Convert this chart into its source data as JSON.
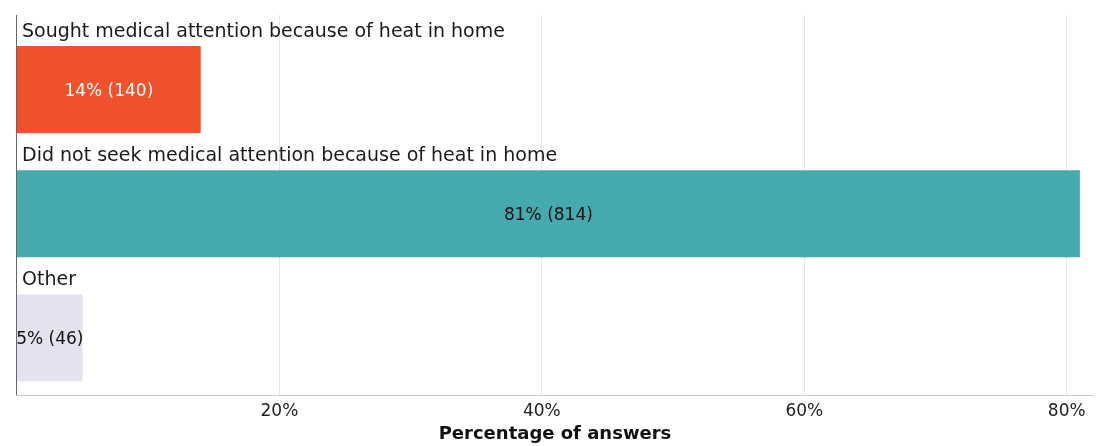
{
  "chart_data": {
    "type": "bar",
    "orientation": "horizontal",
    "categories": [
      "Sought medical attention because of heat in home",
      "Did not seek medical attention because of heat in home",
      "Other"
    ],
    "values": [
      14,
      81,
      5
    ],
    "colors": [
      "#f0522d",
      "#45a9ae",
      "#e6e1ef"
    ],
    "value_labels": [
      "14% (140)",
      "81% (814)",
      "5% (46)"
    ],
    "xlabel": "Percentage of answers",
    "xlim": [
      0,
      82
    ],
    "xticks": [
      {
        "value": 20,
        "label": "20%"
      },
      {
        "value": 40,
        "label": "40%"
      },
      {
        "value": 60,
        "label": "60%"
      },
      {
        "value": 80,
        "label": "80%"
      }
    ],
    "grid": "x"
  }
}
